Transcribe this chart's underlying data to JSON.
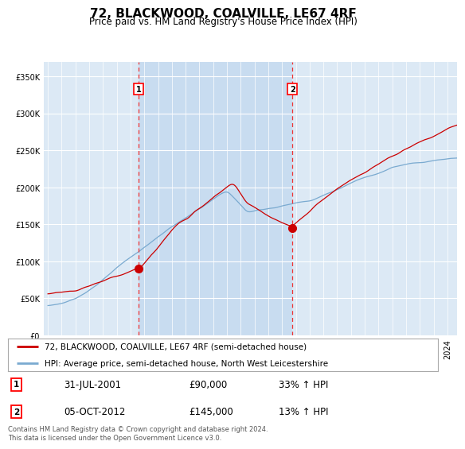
{
  "title": "72, BLACKWOOD, COALVILLE, LE67 4RF",
  "subtitle": "Price paid vs. HM Land Registry's House Price Index (HPI)",
  "legend_line1": "72, BLACKWOOD, COALVILLE, LE67 4RF (semi-detached house)",
  "legend_line2": "HPI: Average price, semi-detached house, North West Leicestershire",
  "annotation1_date": "31-JUL-2001",
  "annotation1_price": "£90,000",
  "annotation1_hpi": "33% ↑ HPI",
  "annotation2_date": "05-OCT-2012",
  "annotation2_price": "£145,000",
  "annotation2_hpi": "13% ↑ HPI",
  "footer": "Contains HM Land Registry data © Crown copyright and database right 2024.\nThis data is licensed under the Open Government Licence v3.0.",
  "bg_color": "#dce9f5",
  "highlight_color": "#c8dcf0",
  "line_color_red": "#cc0000",
  "line_color_blue": "#7aaad0",
  "vline_color": "#ee3333",
  "ylim": [
    0,
    370000
  ],
  "yticks": [
    0,
    50000,
    100000,
    150000,
    200000,
    250000,
    300000,
    350000
  ],
  "sale1_year": 2001.583,
  "sale1_price": 90000,
  "sale2_year": 2012.75,
  "sale2_price": 145000
}
